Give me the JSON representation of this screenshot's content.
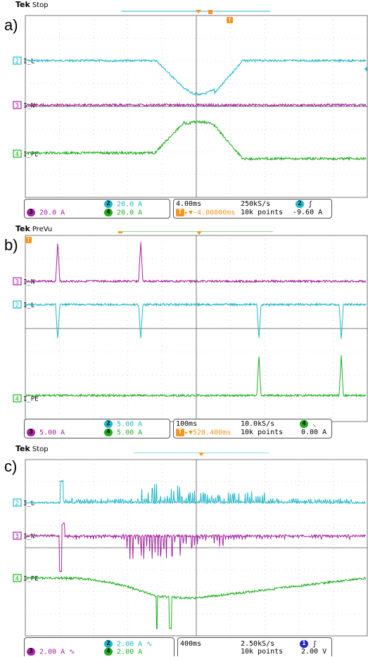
{
  "panels": [
    {
      "label": "a)",
      "brand": "Tek",
      "mode": "Stop",
      "channels": [
        {
          "id": "2",
          "name": "I_L",
          "color": "#1fb7c9"
        },
        {
          "id": "3",
          "name": "I_N",
          "color": "#a4239f"
        },
        {
          "id": "4",
          "name": "I_PE",
          "color": "#1faf1f"
        }
      ],
      "scale": {
        "ch2": "20.0 A",
        "ch3": "20.0 A",
        "ch4": "20.0 A"
      },
      "timebase": "4.00ms",
      "rate": "250kS/s",
      "delay": "-4.00800ms",
      "points": "10k points",
      "trigger_ch": "2",
      "trigger_level": "-9.60 A",
      "trigger_slope": "rising"
    },
    {
      "label": "b)",
      "brand": "Tek",
      "mode": "PreVu",
      "channels": [
        {
          "id": "3",
          "name": "I_N",
          "color": "#a4239f"
        },
        {
          "id": "2",
          "name": "I_L",
          "color": "#1fb7c9"
        },
        {
          "id": "4",
          "name": "I_PE",
          "color": "#1faf1f"
        }
      ],
      "scale": {
        "ch2": "5.00 A",
        "ch3": "5.00 A",
        "ch4": "5.00 A"
      },
      "timebase": "100ms",
      "rate": "10.0kS/s",
      "delay": "528.400ms",
      "points": "10k points",
      "trigger_ch": "4",
      "trigger_level": "0.00 A",
      "trigger_slope": "falling"
    },
    {
      "label": "c)",
      "brand": "Tek",
      "mode": "Stop",
      "channels": [
        {
          "id": "2",
          "name": "I_L",
          "color": "#1fb7c9"
        },
        {
          "id": "3",
          "name": "I_N",
          "color": "#a4239f"
        },
        {
          "id": "4",
          "name": "I_PE",
          "color": "#1faf1f"
        }
      ],
      "scale": {
        "ch2": "2.00 A",
        "ch3": "2.00 A",
        "ch4": "2.00 A"
      },
      "timebase": "400ms",
      "rate": "2.50kS/s",
      "delay": "",
      "points": "10k points",
      "trigger_ch": "1",
      "trigger_level": "2.00 V",
      "trigger_slope": "rising"
    }
  ],
  "colors": {
    "ch1": "#2323c9",
    "ch2": "#1fb7c9",
    "ch3": "#a4239f",
    "ch4": "#1faf1f",
    "trigger": "#f7941d",
    "grid": "#b0b0b0"
  }
}
